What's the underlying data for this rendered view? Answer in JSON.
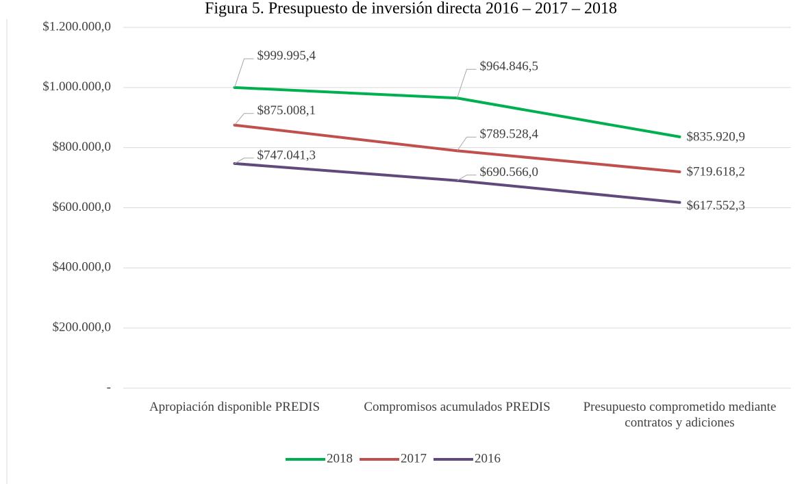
{
  "chart_data": {
    "type": "line",
    "title": "Figura 5. Presupuesto de inversión directa 2016 – 2017 – 2018",
    "categories": [
      "Apropiación disponible PREDIS",
      "Compromisos acumulados PREDIS",
      "Presupuesto comprometido mediante contratos y adiciones"
    ],
    "series": [
      {
        "name": "2018",
        "color": "#00b050",
        "values": [
          999995.4,
          964846.5,
          835920.9
        ],
        "value_labels": [
          "$999.995,4",
          "$964.846,5",
          "$835.920,9"
        ]
      },
      {
        "name": "2017",
        "color": "#c0504d",
        "values": [
          875008.1,
          789528.4,
          719618.2
        ],
        "value_labels": [
          "$875.008,1",
          "$789.528,4",
          "$719.618,2"
        ]
      },
      {
        "name": "2016",
        "color": "#604a7b",
        "values": [
          747041.3,
          690566.0,
          617552.3
        ],
        "value_labels": [
          "$747.041,3",
          "$690.566,0",
          "$617.552,3"
        ]
      }
    ],
    "ylim": [
      0,
      1200000
    ],
    "yticks": [
      {
        "value": 0,
        "label": "-"
      },
      {
        "value": 200000,
        "label": "$200.000,0"
      },
      {
        "value": 400000,
        "label": "$400.000,0"
      },
      {
        "value": 600000,
        "label": "$600.000,0"
      },
      {
        "value": 800000,
        "label": "$800.000,0"
      },
      {
        "value": 1000000,
        "label": "$1.000.000,0"
      },
      {
        "value": 1200000,
        "label": "$1.200.000,0"
      }
    ],
    "grid": true,
    "legend": "bottom"
  }
}
